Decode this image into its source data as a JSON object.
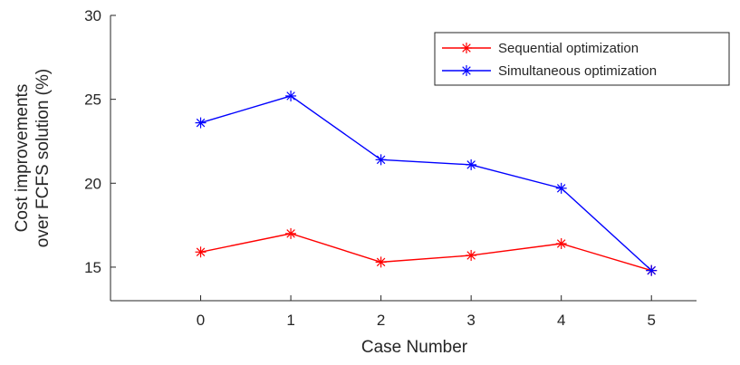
{
  "chart_data": {
    "type": "line",
    "title": "",
    "xlabel": "Case Number",
    "ylabel_lines": [
      "Cost improvements",
      "over FCFS solution (%)"
    ],
    "x": [
      0,
      1,
      2,
      3,
      4,
      5
    ],
    "xlim": [
      -1,
      5.5
    ],
    "ylim": [
      13,
      30
    ],
    "xticks": [
      0,
      1,
      2,
      3,
      4,
      5
    ],
    "yticks": [
      15,
      20,
      25,
      30
    ],
    "grid": false,
    "legend_position": "top-right",
    "series": [
      {
        "name": "Sequential optimization",
        "color": "#ff0000",
        "marker": "asterisk",
        "values": [
          15.9,
          17.0,
          15.3,
          15.7,
          16.4,
          14.8
        ]
      },
      {
        "name": "Simultaneous optimization",
        "color": "#0000ff",
        "marker": "asterisk",
        "values": [
          23.6,
          25.2,
          21.4,
          21.1,
          19.7,
          14.8
        ]
      }
    ]
  }
}
